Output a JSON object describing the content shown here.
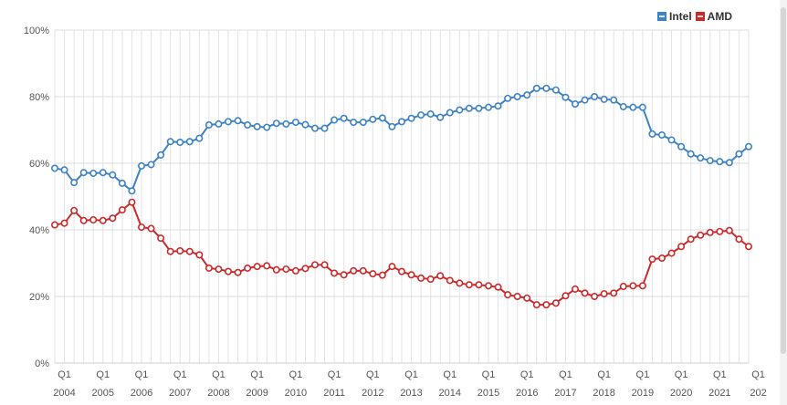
{
  "chart_data": {
    "type": "line",
    "title": "",
    "xlabel": "",
    "ylabel": "",
    "ylim": [
      0,
      100
    ],
    "y_ticks": [
      0,
      20,
      40,
      60,
      80,
      100
    ],
    "y_tick_suffix": "%",
    "y_tick_labels": [
      "0%",
      "20%",
      "40%",
      "60%",
      "80%",
      "100%"
    ],
    "quarter_label": "Q1",
    "years": [
      "2004",
      "2005",
      "2006",
      "2007",
      "2008",
      "2009",
      "2010",
      "2011",
      "2012",
      "2013",
      "2014",
      "2015",
      "2016",
      "2017",
      "2018",
      "2019",
      "2020",
      "2021",
      "202"
    ],
    "grid": true,
    "legend_position": "top-right",
    "series": [
      {
        "name": "Intel",
        "color": "#3d82c4",
        "values": [
          58.5,
          58.0,
          54.2,
          57.2,
          57.0,
          57.2,
          56.5,
          54.0,
          51.7,
          59.2,
          59.6,
          62.5,
          66.5,
          66.3,
          66.5,
          67.5,
          71.5,
          71.8,
          72.5,
          72.8,
          71.5,
          71.0,
          70.8,
          72.0,
          71.8,
          72.3,
          71.6,
          70.5,
          70.5,
          73.0,
          73.5,
          72.3,
          72.3,
          73.2,
          73.6,
          71.0,
          72.5,
          73.5,
          74.5,
          74.8,
          73.8,
          75.2,
          76.0,
          76.5,
          76.5,
          76.8,
          77.2,
          79.5,
          80.0,
          80.5,
          82.5,
          82.5,
          82.0,
          79.8,
          77.8,
          79.0,
          80.0,
          79.2,
          79.0,
          77.0,
          76.8,
          76.8,
          68.8,
          68.5,
          67.0,
          65.0,
          62.8,
          61.6,
          60.8,
          60.5,
          60.2,
          62.8,
          65.0
        ]
      },
      {
        "name": "AMD",
        "color": "#cc2a2a",
        "values": [
          41.5,
          42.0,
          45.8,
          42.8,
          43.0,
          42.8,
          43.5,
          46.0,
          48.3,
          40.8,
          40.4,
          37.5,
          33.5,
          33.7,
          33.5,
          32.5,
          28.5,
          28.2,
          27.5,
          27.2,
          28.5,
          29.0,
          29.2,
          28.0,
          28.2,
          27.7,
          28.4,
          29.5,
          29.5,
          27.0,
          26.5,
          27.7,
          27.7,
          26.8,
          26.4,
          29.0,
          27.5,
          26.5,
          25.5,
          25.2,
          26.2,
          24.8,
          24.0,
          23.5,
          23.5,
          23.2,
          22.8,
          20.5,
          20.0,
          19.5,
          17.5,
          17.5,
          18.0,
          20.2,
          22.2,
          21.0,
          20.0,
          20.8,
          21.0,
          23.0,
          23.2,
          23.2,
          31.2,
          31.5,
          33.0,
          35.0,
          37.2,
          38.4,
          39.2,
          39.5,
          39.8,
          37.2,
          35.0
        ]
      }
    ]
  }
}
